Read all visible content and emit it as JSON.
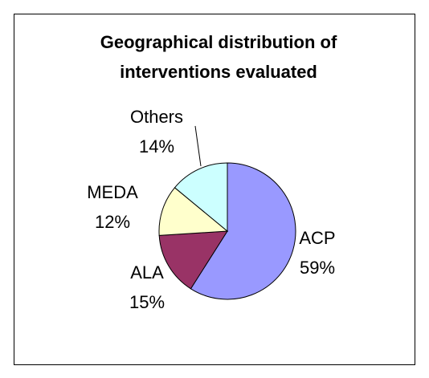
{
  "chart_data": {
    "type": "pie",
    "title": "Geographical distribution of interventions evaluated",
    "categories": [
      "ACP",
      "ALA",
      "MEDA",
      "Others"
    ],
    "values": [
      59,
      15,
      12,
      14
    ],
    "value_labels": [
      "59%",
      "15%",
      "12%",
      "14%"
    ],
    "colors": [
      "#9999ff",
      "#993366",
      "#ffffcc",
      "#ccffff"
    ]
  }
}
